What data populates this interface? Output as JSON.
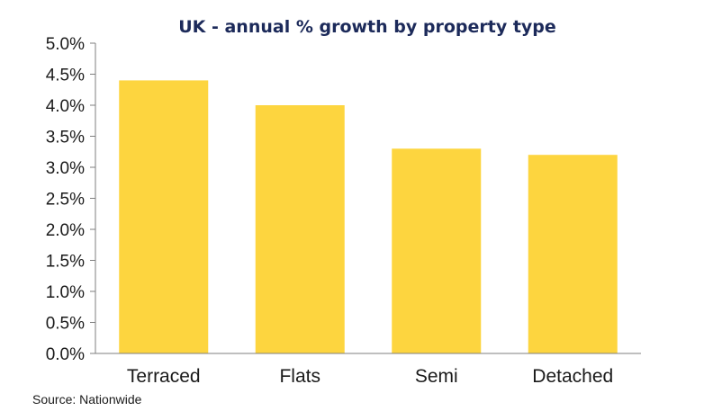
{
  "chart_data": {
    "type": "bar",
    "title": "UK - annual % growth by property type",
    "categories": [
      "Terraced",
      "Flats",
      "Semi",
      "Detached"
    ],
    "values": [
      4.4,
      4.0,
      3.3,
      3.2
    ],
    "ylim": [
      0,
      5
    ],
    "yticks": [
      "0.0%",
      "0.5%",
      "1.0%",
      "1.5%",
      "2.0%",
      "2.5%",
      "3.0%",
      "3.5%",
      "4.0%",
      "4.5%",
      "5.0%"
    ],
    "xlabel": "",
    "ylabel": "",
    "grid": false,
    "bar_color": "#fdd53f",
    "axis_color": "#7f7f7f",
    "title_color": "#1c2a5a",
    "source": "Source: Nationwide"
  }
}
